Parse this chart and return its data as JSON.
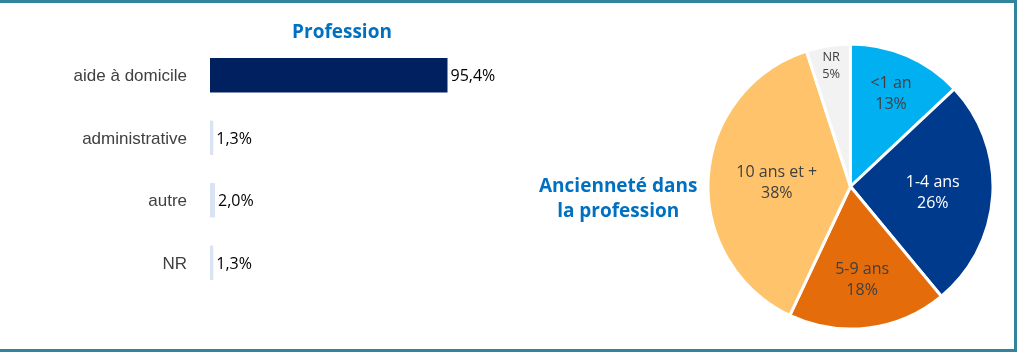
{
  "chart_data": [
    {
      "type": "bar",
      "title": "Profession",
      "orientation": "horizontal",
      "categories": [
        "aide à domicile",
        "administrative",
        "autre",
        "NR"
      ],
      "values": [
        95.4,
        1.3,
        2.0,
        1.3
      ],
      "value_labels": [
        "95,4%",
        "1,3%",
        "2,0%",
        "1,3%"
      ],
      "colors": [
        "#002060",
        "#dae3f3",
        "#dae3f3",
        "#dae3f3"
      ],
      "grid": false,
      "legend": false
    },
    {
      "type": "pie",
      "title": "Ancienneté dans la profession",
      "categories": [
        "<1 an",
        "1-4 ans",
        "5-9 ans",
        "10 ans et +",
        "NR"
      ],
      "values": [
        13,
        26,
        18,
        38,
        5
      ],
      "value_labels": [
        "13%",
        "26%",
        "18%",
        "38%",
        "5%"
      ],
      "colors": [
        "#00b0f0",
        "#003a8c",
        "#e46c0a",
        "#ffc46b",
        "#f2f2f2"
      ],
      "legend": false
    }
  ]
}
